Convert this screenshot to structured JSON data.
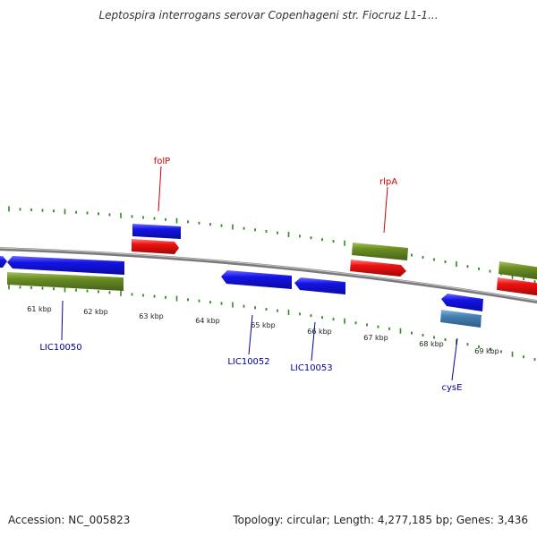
{
  "title": "Leptospira interrogans serovar Copenhageni str. Fiocruz L1-1...",
  "footer": {
    "accession": "Accession: NC_005823",
    "summary": "Topology: circular; Length: 4,277,185 bp; Genes: 3,436"
  },
  "colors": {
    "backbone": "#8a8a8a",
    "tick": "#2e8b1e",
    "blue_gene": "#1010e0",
    "red_gene": "#e01010",
    "olive_gene": "#6b8e23",
    "steel_gene": "#4682b4",
    "label_blue": "#000099",
    "label_red": "#cc0000"
  },
  "scale": {
    "kbp_labels": [
      "61 kbp",
      "62 kbp",
      "63 kbp",
      "64 kbp",
      "65 kbp",
      "66 kbp",
      "67 kbp",
      "68 kbp",
      "69 kbp"
    ]
  },
  "gene_labels": [
    {
      "name": "folP",
      "color": "red"
    },
    {
      "name": "rlpA",
      "color": "red"
    },
    {
      "name": "LIC10050",
      "color": "blue"
    },
    {
      "name": "LIC10052",
      "color": "blue"
    },
    {
      "name": "LIC10053",
      "color": "blue"
    },
    {
      "name": "cysE",
      "color": "blue"
    }
  ]
}
